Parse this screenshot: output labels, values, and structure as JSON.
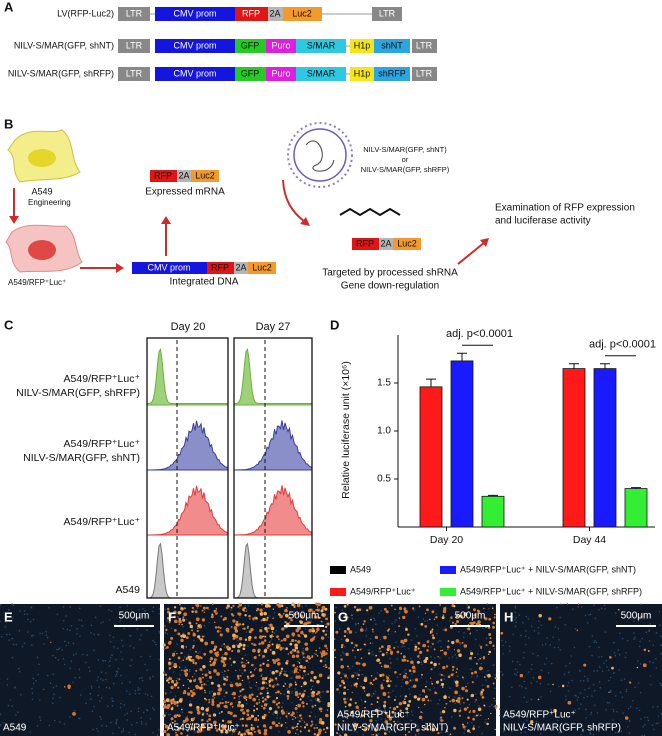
{
  "panel_a": {
    "label": "A",
    "constructs": [
      {
        "name": "LV(RFP-Luc2)",
        "parts": [
          "LTR",
          "CMV prom",
          "RFP",
          "2A",
          "Luc2",
          "LTR"
        ]
      },
      {
        "name": "NILV-S/MAR(GFP, shNT)",
        "parts": [
          "LTR",
          "CMV prom",
          "GFP",
          "Puro",
          "S/MAR",
          "H1p",
          "shNT",
          "LTR"
        ]
      },
      {
        "name": "NILV-S/MAR(GFP, shRFP)",
        "parts": [
          "LTR",
          "CMV prom",
          "GFP",
          "Puro",
          "S/MAR",
          "H1p",
          "shRFP",
          "LTR"
        ]
      }
    ]
  },
  "panel_b": {
    "label": "B",
    "cell_parent": "A549",
    "engineering": "Engineering",
    "cell_engineered": "A549/RFP⁺Luc⁺",
    "mrna": {
      "parts": [
        "RFP",
        "2A",
        "Luc2"
      ],
      "caption": "Expressed mRNA"
    },
    "dna": {
      "parts": [
        "CMV prom",
        "RFP",
        "2A",
        "Luc2"
      ],
      "caption": "Integrated DNA"
    },
    "vectors": [
      "NILV-S/MAR(GFP, shNT)",
      "or",
      "NILV-S/MAR(GFP, shRFP)"
    ],
    "target": {
      "parts": [
        "RFP",
        "2A",
        "Luc2"
      ],
      "caption": [
        "Targeted by processed shRNA",
        "Gene down-regulation"
      ]
    },
    "outcome": [
      "Examination of RFP expression",
      "and luciferase activity"
    ]
  },
  "panel_c": {
    "label": "C",
    "columns": [
      "Day 20",
      "Day 27"
    ],
    "rows": [
      [
        "A549/RFP⁺Luc⁺",
        "NILV-S/MAR(GFP, shRFP)"
      ],
      [
        "A549/RFP⁺Luc⁺",
        "NILV-S/MAR(GFP, shNT)"
      ],
      [
        "A549/RFP⁺Luc⁺"
      ],
      [
        "A549"
      ]
    ]
  },
  "chart_data": {
    "type": "bar",
    "label": "D",
    "y_label": "Relative luciferase unit (×10⁶)",
    "categories": [
      "Day 20",
      "Day 44"
    ],
    "series": [
      {
        "name": "A549",
        "color": "#000000",
        "values": [
          0,
          0
        ],
        "errors": [
          0,
          0
        ]
      },
      {
        "name": "A549/RFP⁺Luc⁺",
        "color": "#ff1a1a",
        "values": [
          1.46,
          1.65
        ],
        "errors": [
          0.08,
          0.05
        ]
      },
      {
        "name": "A549/RFP⁺Luc⁺ + NILV-S/MAR(GFP, shNT)",
        "color": "#1a1aff",
        "values": [
          1.73,
          1.65
        ],
        "errors": [
          0.08,
          0.05
        ]
      },
      {
        "name": "A549/RFP⁺Luc⁺ + NILV-S/MAR(GFP, shRFP)",
        "color": "#33ee33",
        "values": [
          0.32,
          0.4
        ],
        "errors": [
          0.01,
          0.01
        ]
      }
    ],
    "ylim": [
      0,
      2
    ],
    "yticks": [
      0.5,
      {
        "value": 1,
        "label": "1.0"
      },
      1.5
    ],
    "annotations": [
      "adj. p<0.0001",
      "adj. p<0.0001"
    ]
  },
  "panel_images": [
    {
      "label": "E",
      "scale": "500μm",
      "caption": [
        "A549"
      ]
    },
    {
      "label": "F",
      "scale": "500μm",
      "caption": [
        "A549/RFP⁺Luc⁺"
      ]
    },
    {
      "label": "G",
      "scale": "500μm",
      "caption": [
        "A549/RFP⁺Luc⁺",
        "NILV-S/MAR(GFP, shNT)"
      ]
    },
    {
      "label": "H",
      "scale": "500μm",
      "caption": [
        "A549/RFP⁺Luc⁺",
        "NILV-S/MAR(GFP, shRFP)"
      ]
    }
  ]
}
